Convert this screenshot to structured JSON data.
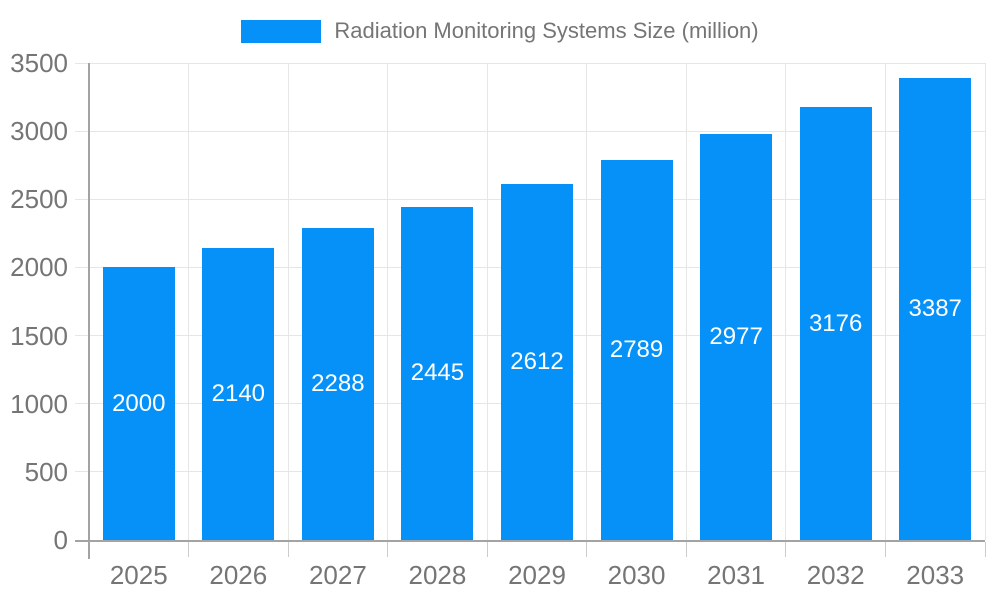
{
  "legend": {
    "label": "Radiation Monitoring Systems Size (million)"
  },
  "chart_data": {
    "type": "bar",
    "title": "Radiation Monitoring Systems Size (million)",
    "categories": [
      "2025",
      "2026",
      "2027",
      "2028",
      "2029",
      "2030",
      "2031",
      "2032",
      "2033"
    ],
    "values": [
      2000,
      2140,
      2288,
      2445,
      2612,
      2789,
      2977,
      3176,
      3387
    ],
    "xlabel": "",
    "ylabel": "",
    "ylim": [
      0,
      3500
    ],
    "yticks": [
      0,
      500,
      1000,
      1500,
      2000,
      2500,
      3000,
      3500
    ],
    "grid": true,
    "legend_position": "top-center",
    "value_labels": "inside-center-white"
  },
  "colors": {
    "bar": "#0591f8",
    "grid": "#e6e6e6",
    "axis": "#a3a3a3",
    "tick": "#cccccc",
    "tick_text": "#757575",
    "legend_text": "#757575",
    "value_text": "#ffffff",
    "background": "#ffffff"
  }
}
